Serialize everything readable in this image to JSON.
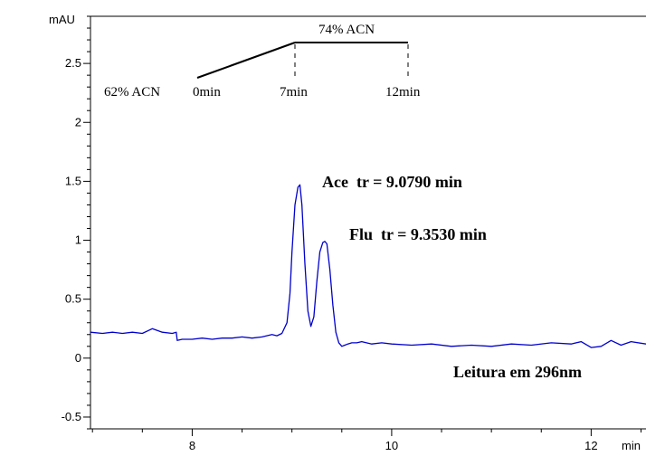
{
  "chart_data": {
    "type": "line",
    "title": "",
    "xlabel": "min",
    "ylabel": "mAU",
    "xlim": [
      6.98,
      12.55
    ],
    "ylim": [
      -0.6,
      2.9
    ],
    "x_ticks": [
      8,
      10,
      12
    ],
    "x_tick_labels": [
      "8",
      "10",
      "12"
    ],
    "y_ticks": [
      -0.5,
      0,
      0.5,
      1,
      1.5,
      2,
      2.5
    ],
    "y_tick_labels": [
      "-0.5",
      "0",
      "0.5",
      "1",
      "1.5",
      "2",
      "2.5"
    ],
    "grid": false,
    "series": [
      {
        "color": "#0000cc",
        "x": [
          6.98,
          7.1,
          7.2,
          7.3,
          7.4,
          7.5,
          7.6,
          7.7,
          7.8,
          7.84,
          7.85,
          7.9,
          8.0,
          8.1,
          8.2,
          8.3,
          8.4,
          8.5,
          8.6,
          8.7,
          8.8,
          8.85,
          8.9,
          8.95,
          8.98,
          9.0,
          9.03,
          9.06,
          9.08,
          9.1,
          9.13,
          9.16,
          9.19,
          9.22,
          9.25,
          9.28,
          9.31,
          9.33,
          9.35,
          9.38,
          9.41,
          9.44,
          9.47,
          9.5,
          9.53,
          9.56,
          9.6,
          9.65,
          9.7,
          9.8,
          9.9,
          10.0,
          10.2,
          10.4,
          10.6,
          10.8,
          11.0,
          11.2,
          11.4,
          11.6,
          11.8,
          11.9,
          12.0,
          12.1,
          12.2,
          12.3,
          12.4,
          12.55
        ],
        "y": [
          0.22,
          0.21,
          0.22,
          0.21,
          0.22,
          0.21,
          0.25,
          0.22,
          0.21,
          0.22,
          0.15,
          0.16,
          0.16,
          0.17,
          0.16,
          0.17,
          0.17,
          0.18,
          0.17,
          0.18,
          0.2,
          0.19,
          0.21,
          0.3,
          0.55,
          0.9,
          1.3,
          1.45,
          1.47,
          1.3,
          0.8,
          0.4,
          0.27,
          0.35,
          0.65,
          0.9,
          0.98,
          0.99,
          0.97,
          0.75,
          0.45,
          0.22,
          0.13,
          0.1,
          0.11,
          0.12,
          0.13,
          0.13,
          0.14,
          0.12,
          0.13,
          0.12,
          0.11,
          0.12,
          0.1,
          0.11,
          0.1,
          0.12,
          0.11,
          0.13,
          0.12,
          0.14,
          0.09,
          0.1,
          0.15,
          0.11,
          0.14,
          0.12
        ]
      }
    ],
    "annotations": {
      "gradient": {
        "start_label": "62% ACN",
        "end_label": "74% ACN",
        "time_labels": [
          "0min",
          "7min",
          "12min"
        ]
      },
      "peak1": "Ace  tr = 9.0790 min",
      "peak2": "Flu  tr = 9.3530 min",
      "reading": "Leitura em 296nm"
    }
  }
}
